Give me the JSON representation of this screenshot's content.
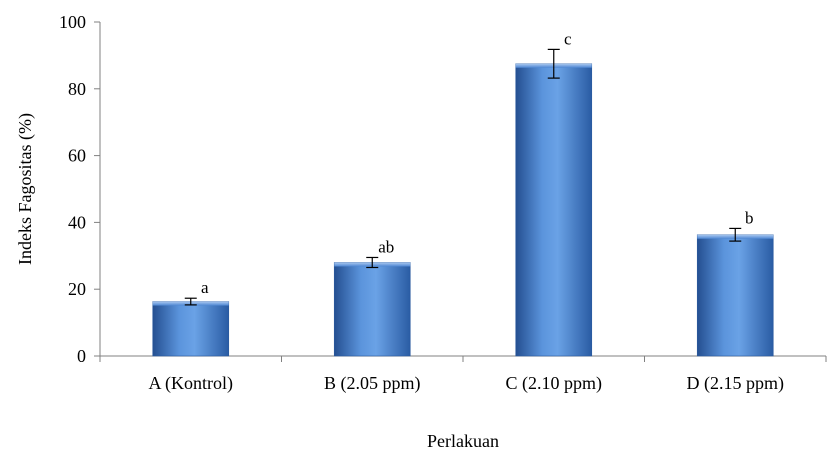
{
  "chart_data": {
    "type": "bar",
    "title": "",
    "xlabel": "Perlakuan",
    "ylabel": "Indeks Fagositas (%)",
    "ylim": [
      0,
      100
    ],
    "yticks": [
      "0",
      "20",
      "40",
      "60",
      "80",
      "100"
    ],
    "categories": [
      "A (Kontrol)",
      "B (2.05 ppm)",
      "C (2.10 ppm)",
      "D (2.15 ppm)"
    ],
    "values": [
      16.3,
      28.0,
      87.5,
      36.3
    ],
    "errors": [
      1.0,
      1.5,
      4.3,
      1.9
    ],
    "significance": [
      "a",
      "ab",
      "c",
      "b"
    ],
    "grid": false,
    "legend": "none",
    "colors": {
      "bar_light": "#6fa3e0",
      "bar_mid": "#3f7fcf",
      "bar_dark": "#1f4e96",
      "bar_edge": "#2a5a9e"
    }
  }
}
